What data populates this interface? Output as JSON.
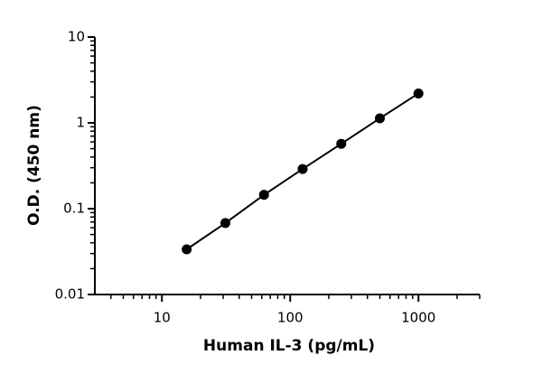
{
  "chart_data": {
    "type": "line",
    "x_label": "Human IL-3 (pg/mL)",
    "y_label": "O.D. (450 nm)",
    "x": [
      15.6,
      31.25,
      62.5,
      125,
      250,
      500,
      1000
    ],
    "series": [
      {
        "color": "#000000",
        "values": [
          0.0336,
          0.068,
          0.145,
          0.29,
          0.57,
          1.13,
          2.2
        ]
      }
    ],
    "xscale": "log",
    "yscale": "log",
    "xlim": [
      3,
      3000
    ],
    "ylim": [
      0.01,
      10
    ],
    "xticks": [
      10,
      100,
      1000
    ],
    "yticks": [
      0.01,
      0.1,
      1,
      10
    ],
    "xminorticks": [
      4,
      5,
      6,
      7,
      8,
      9,
      20,
      30,
      40,
      50,
      60,
      70,
      80,
      90,
      200,
      300,
      400,
      500,
      600,
      700,
      800,
      900,
      2000,
      3000
    ],
    "yminorticks": [
      0.02,
      0.03,
      0.04,
      0.05,
      0.06,
      0.07,
      0.08,
      0.09,
      0.2,
      0.3,
      0.4,
      0.5,
      0.6,
      0.7,
      0.8,
      0.9,
      2,
      3,
      4,
      5,
      6,
      7,
      8,
      9
    ]
  }
}
